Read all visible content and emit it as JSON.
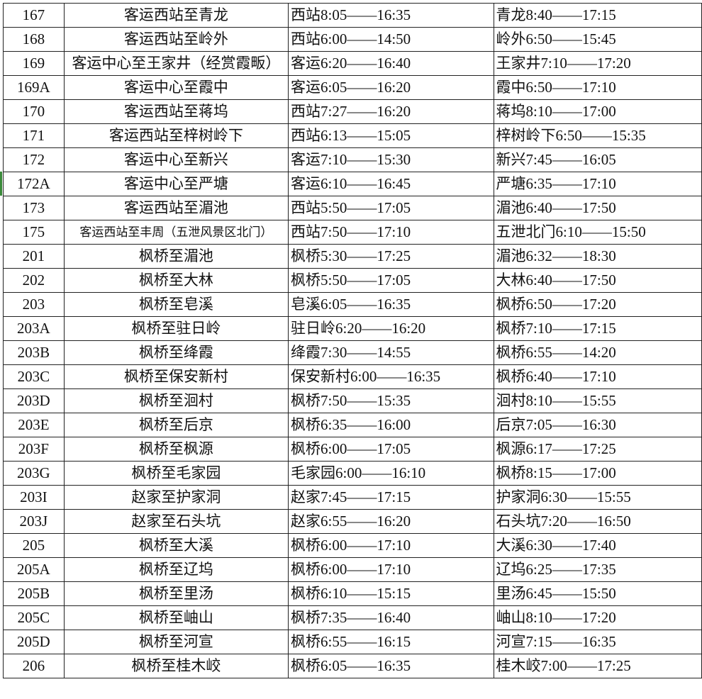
{
  "selected_row_color": "#3a8a3a",
  "selected_route": "172A",
  "rows": [
    {
      "route": "167",
      "line": "客运西站至青龙",
      "first_dir": "西站8:05——16:35",
      "second_dir": "青龙8:40——17:15"
    },
    {
      "route": "168",
      "line": "客运西站至岭外",
      "first_dir": "西站6:00——14:50",
      "second_dir": "岭外6:50——15:45"
    },
    {
      "route": "169",
      "line": "客运中心至王家井（经赏霞畈）",
      "first_dir": "客运6:20——16:40",
      "second_dir": "王家井7:10——17:20"
    },
    {
      "route": "169A",
      "line": "客运中心至霞中",
      "first_dir": "客运6:05——16:20",
      "second_dir": "霞中6:50——17:10"
    },
    {
      "route": "170",
      "line": "客运西站至蒋坞",
      "first_dir": "西站7:27——16:20",
      "second_dir": "蒋坞8:10——17:00"
    },
    {
      "route": "171",
      "line": "客运西站至梓树岭下",
      "first_dir": "西站6:13——15:05",
      "second_dir": "梓树岭下6:50——15:35"
    },
    {
      "route": "172",
      "line": "客运中心至新兴",
      "first_dir": "客运7:10——15:30",
      "second_dir": "新兴7:45——16:05"
    },
    {
      "route": "172A",
      "line": "客运中心至严塘",
      "first_dir": "客运6:10——16:45",
      "second_dir": "严塘6:35——17:10"
    },
    {
      "route": "173",
      "line": "客运西站至湄池",
      "first_dir": "西站5:50——17:05",
      "second_dir": "湄池6:40——17:50"
    },
    {
      "route": "175",
      "line": "客运西站至丰周（五泄风景区北门）",
      "first_dir": "西站7:50——17:10",
      "second_dir": "五泄北门6:10——15:50"
    },
    {
      "route": "201",
      "line": "枫桥至湄池",
      "first_dir": "枫桥5:30——17:25",
      "second_dir": "湄池6:32——18:30"
    },
    {
      "route": "202",
      "line": "枫桥至大林",
      "first_dir": "枫桥5:50——17:05",
      "second_dir": "大林6:40——17:50"
    },
    {
      "route": "203",
      "line": "枫桥至皂溪",
      "first_dir": "皂溪6:05——16:35",
      "second_dir": "枫桥6:50——17:20"
    },
    {
      "route": "203A",
      "line": "枫桥至驻日岭",
      "first_dir": "驻日岭6:20——16:20",
      "second_dir": "枫桥7:10——17:15"
    },
    {
      "route": "203B",
      "line": "枫桥至绛霞",
      "first_dir": "绛霞7:30——14:55",
      "second_dir": "枫桥6:55——14:20"
    },
    {
      "route": "203C",
      "line": "枫桥至保安新村",
      "first_dir": "保安新村6:00——16:35",
      "second_dir": "枫桥6:40——17:10"
    },
    {
      "route": "203D",
      "line": "枫桥至洄村",
      "first_dir": "枫桥7:50——15:35",
      "second_dir": "洄村8:10——15:55"
    },
    {
      "route": "203E",
      "line": "枫桥至后京",
      "first_dir": "枫桥6:35——16:00",
      "second_dir": "后京7:05——16:30"
    },
    {
      "route": "203F",
      "line": "枫桥至枫源",
      "first_dir": "枫桥6:00——17:05",
      "second_dir": "枫源6:17——17:25"
    },
    {
      "route": "203G",
      "line": "枫桥至毛家园",
      "first_dir": "毛家园6:00——16:10",
      "second_dir": "枫桥8:15——17:00"
    },
    {
      "route": "203I",
      "line": "赵家至护家洞",
      "first_dir": "赵家7:45——17:15",
      "second_dir": "护家洞6:30——15:55"
    },
    {
      "route": "203J",
      "line": "赵家至石头坑",
      "first_dir": "赵家6:55——16:20",
      "second_dir": "石头坑7:20——16:50"
    },
    {
      "route": "205",
      "line": "枫桥至大溪",
      "first_dir": "枫桥6:00——17:10",
      "second_dir": "大溪6:30——17:40"
    },
    {
      "route": "205A",
      "line": "枫桥至辽坞",
      "first_dir": "枫桥6:00——17:10",
      "second_dir": "辽坞6:25——17:35"
    },
    {
      "route": "205B",
      "line": "枫桥至里汤",
      "first_dir": "枫桥6:10——15:15",
      "second_dir": "里汤6:45——15:50"
    },
    {
      "route": "205C",
      "line": "枫桥至岫山",
      "first_dir": "枫桥7:35——16:40",
      "second_dir": "岫山8:10——17:20"
    },
    {
      "route": "205D",
      "line": "枫桥至河宣",
      "first_dir": "枫桥6:55——16:15",
      "second_dir": "河宣7:15——16:35"
    },
    {
      "route": "206",
      "line": "枫桥至桂木峧",
      "first_dir": "枫桥6:05——16:35",
      "second_dir": "桂木峧7:00——17:25"
    }
  ]
}
